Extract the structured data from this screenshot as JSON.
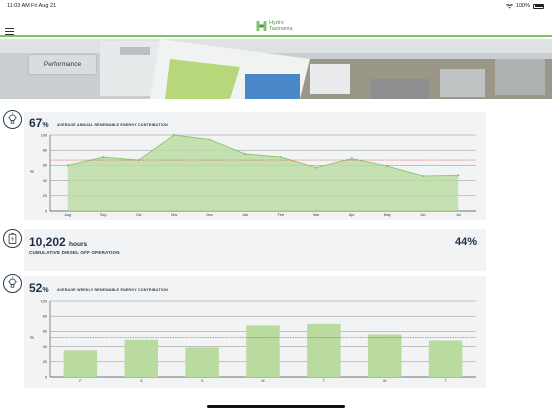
{
  "status_bar": {
    "time": "11:03 AM",
    "date": "Fri Aug 21",
    "battery": "100%"
  },
  "header": {
    "logo_line1": "Hydro",
    "logo_line2": "Tasmania",
    "brand_color": "#7ec46b"
  },
  "hero": {
    "button_label": "Performance"
  },
  "annual": {
    "value": "67",
    "unit": "%",
    "caption": "AVERAGE ANNUAL RENEWABLE ENERGY CONTRIBUTION",
    "icon": "bulb-icon"
  },
  "diesel": {
    "hours": "10,202",
    "hours_unit": "hours",
    "caption": "CUMULATIVE DIESEL OFF OPERATION",
    "percent": "44%",
    "icon": "battery-icon"
  },
  "weekly": {
    "value": "52",
    "unit": "%",
    "caption": "AVERAGE WEEKLY RENEWABLE ENERGY CONTRIBUTION",
    "icon": "bulb-icon"
  },
  "chart_data": [
    {
      "type": "area",
      "ylabel": "%",
      "ylim": [
        0,
        100
      ],
      "yticks": [
        0,
        20,
        40,
        60,
        80,
        100
      ],
      "categories": [
        "Aug",
        "Sep",
        "Oct",
        "Nov",
        "Dec",
        "Jan",
        "Feb",
        "Mar",
        "Apr",
        "May",
        "Jun",
        "Jul"
      ],
      "values": [
        60,
        71,
        67,
        100,
        94,
        75,
        71,
        57,
        69,
        59,
        46,
        47
      ],
      "reference_line": 67,
      "fill_color": "#b9dba0",
      "line_color": "#8cc56f",
      "reference_color": "#d9534f",
      "grid": true
    },
    {
      "type": "bar",
      "ylabel": "%",
      "ylim": [
        0,
        100
      ],
      "yticks": [
        0,
        20,
        40,
        60,
        80,
        100
      ],
      "categories": [
        "F",
        "S",
        "S",
        "M",
        "T",
        "W",
        "T"
      ],
      "values": [
        35,
        49,
        39,
        68,
        70,
        56,
        48
      ],
      "reference_line": 52,
      "fill_color": "#b9dba0",
      "reference_color": "#d9534f",
      "grid": true
    }
  ]
}
